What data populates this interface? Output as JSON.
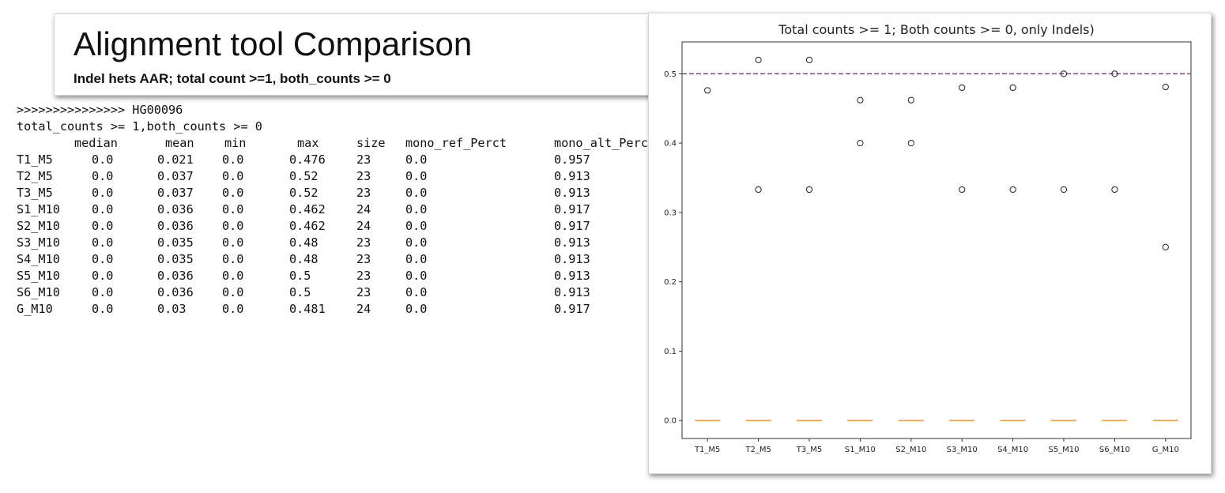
{
  "slide": {
    "title": "Alignment tool Comparison",
    "subtitle": "Indel hets AAR; total count >=1, both_counts >= 0"
  },
  "console": {
    "sample_line": ">>>>>>>>>>>>>>> HG00096",
    "filter_line": "total_counts >= 1,both_counts >= 0",
    "columns": [
      "median",
      "mean",
      "min",
      "max",
      "size",
      "mono_ref_Perct",
      "mono_alt_Perct"
    ],
    "rows": [
      {
        "name": "T1_M5",
        "values": [
          "0.0",
          "0.021",
          "0.0",
          "0.476",
          "23",
          "0.0",
          "0.957"
        ]
      },
      {
        "name": "T2_M5",
        "values": [
          "0.0",
          "0.037",
          "0.0",
          "0.52",
          "23",
          "0.0",
          "0.913"
        ]
      },
      {
        "name": "T3_M5",
        "values": [
          "0.0",
          "0.037",
          "0.0",
          "0.52",
          "23",
          "0.0",
          "0.913"
        ]
      },
      {
        "name": "S1_M10",
        "values": [
          "0.0",
          "0.036",
          "0.0",
          "0.462",
          "24",
          "0.0",
          "0.917"
        ]
      },
      {
        "name": "S2_M10",
        "values": [
          "0.0",
          "0.036",
          "0.0",
          "0.462",
          "24",
          "0.0",
          "0.917"
        ]
      },
      {
        "name": "S3_M10",
        "values": [
          "0.0",
          "0.035",
          "0.0",
          "0.48",
          "23",
          "0.0",
          "0.913"
        ]
      },
      {
        "name": "S4_M10",
        "values": [
          "0.0",
          "0.035",
          "0.0",
          "0.48",
          "23",
          "0.0",
          "0.913"
        ]
      },
      {
        "name": "S5_M10",
        "values": [
          "0.0",
          "0.036",
          "0.0",
          "0.5",
          "23",
          "0.0",
          "0.913"
        ]
      },
      {
        "name": "S6_M10",
        "values": [
          "0.0",
          "0.036",
          "0.0",
          "0.5",
          "23",
          "0.0",
          "0.913"
        ]
      },
      {
        "name": "G_M10",
        "values": [
          "0.0",
          "0.03",
          "0.0",
          "0.481",
          "24",
          "0.0",
          "0.917"
        ]
      }
    ]
  },
  "chart_data": {
    "type": "box",
    "title": "Total counts >= 1; Both counts >= 0, only Indels)",
    "xlabel": "",
    "ylabel": "",
    "categories": [
      "T1_M5",
      "T2_M5",
      "T3_M5",
      "S1_M10",
      "S2_M10",
      "S3_M10",
      "S4_M10",
      "S5_M10",
      "S6_M10",
      "G_M10"
    ],
    "medians": [
      0,
      0,
      0,
      0,
      0,
      0,
      0,
      0,
      0,
      0
    ],
    "outliers": [
      [
        0.476
      ],
      [
        0.52,
        0.333
      ],
      [
        0.52,
        0.333
      ],
      [
        0.462,
        0.4
      ],
      [
        0.462,
        0.4
      ],
      [
        0.48,
        0.333
      ],
      [
        0.48,
        0.333
      ],
      [
        0.5,
        0.333
      ],
      [
        0.5,
        0.333
      ],
      [
        0.481,
        0.25
      ]
    ],
    "reference_line": {
      "y": 0.5,
      "style": "dashed",
      "color": "#a0309a"
    },
    "yticks": [
      0.0,
      0.1,
      0.2,
      0.3,
      0.4,
      0.5
    ],
    "ylim": [
      -0.026,
      0.546
    ],
    "grid": false,
    "colors": {
      "median": "#f5923e",
      "outlier": "#222222"
    }
  }
}
